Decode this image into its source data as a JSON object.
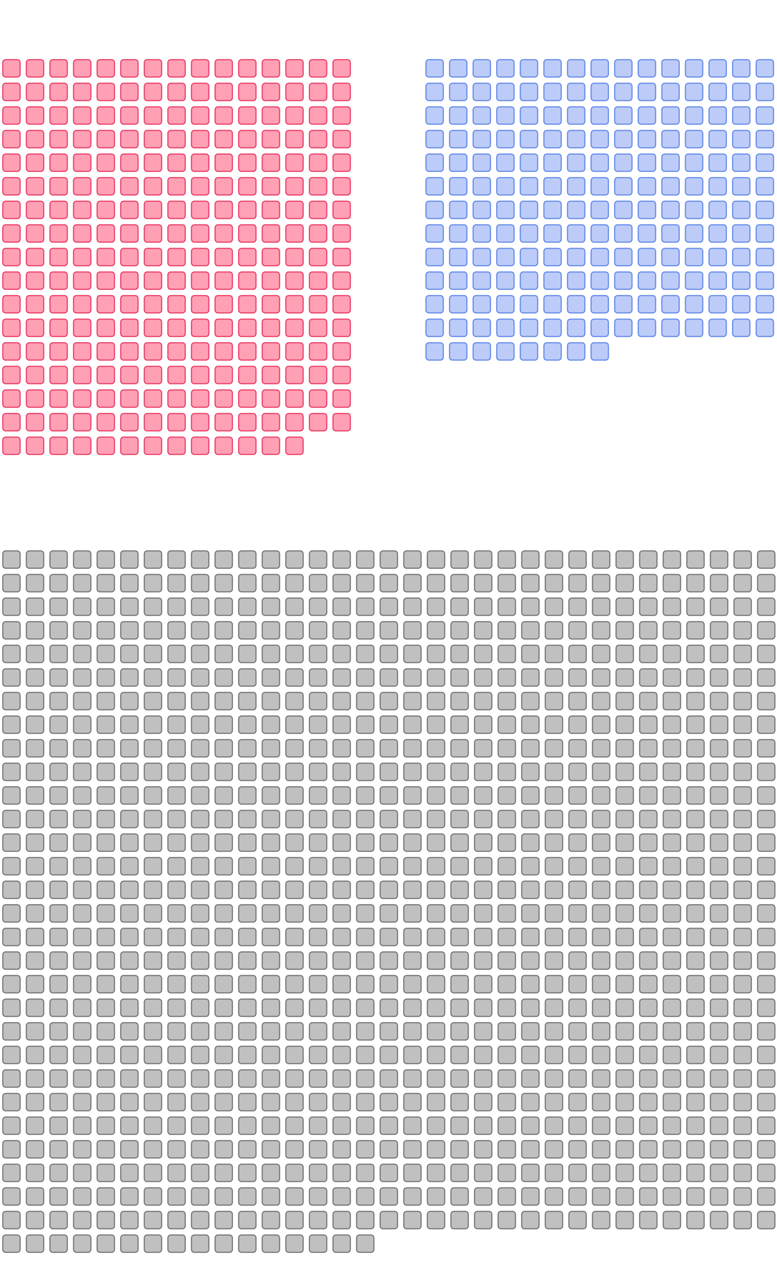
{
  "chart_data": {
    "type": "waffle",
    "unit": "square",
    "groups": [
      {
        "count": 253,
        "fill": "#ffa0b4",
        "stroke": "#e8325e",
        "columns": 15
      },
      {
        "count": 188,
        "fill": "#bccbf8",
        "stroke": "#5b84e6",
        "columns": 15
      },
      {
        "count": 973,
        "fill": "#c0c0c0",
        "stroke": "#6e6e6e",
        "columns": 33
      }
    ]
  }
}
